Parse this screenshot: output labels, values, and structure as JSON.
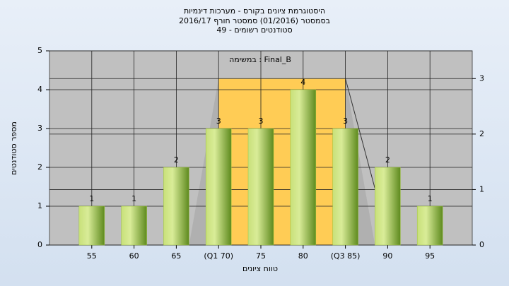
{
  "chart_data": {
    "type": "bar",
    "title": "היסטוגרמת ציונים בקורס - מערכות דינמיות",
    "subtitle": [
      "בסמסטר  (01/2016)  סמסטר חורף 2016/17",
      "סטודנטים רשומים - 49"
    ],
    "annotation": "Final_B : במשימה",
    "x_label": "טווח ציונים",
    "y_label": "מספר סטודנטים",
    "categories": [
      "55",
      "60",
      "65",
      "(Q1 70)",
      "75",
      "80",
      "(Q3 85)",
      "90",
      "95"
    ],
    "values": [
      1,
      1,
      2,
      3,
      3,
      4,
      3,
      2,
      1
    ],
    "color": "#9bc23c",
    "ylim": [
      0,
      5
    ],
    "yticks": [
      0,
      1,
      2,
      3,
      4,
      5
    ],
    "y2lim": [
      0,
      3.5
    ],
    "y2ticks": [
      0,
      1,
      2,
      3
    ],
    "grid": true
  }
}
